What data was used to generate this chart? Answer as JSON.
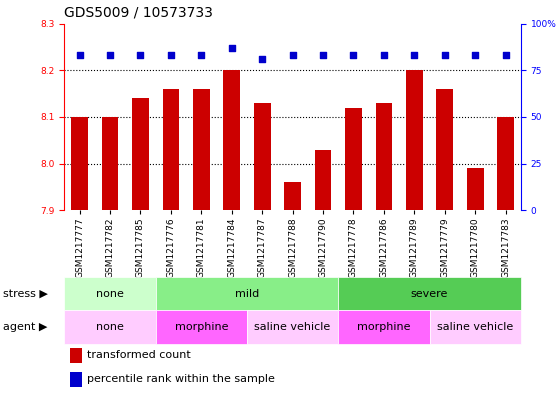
{
  "title": "GDS5009 / 10573733",
  "samples": [
    "GSM1217777",
    "GSM1217782",
    "GSM1217785",
    "GSM1217776",
    "GSM1217781",
    "GSM1217784",
    "GSM1217787",
    "GSM1217788",
    "GSM1217790",
    "GSM1217778",
    "GSM1217786",
    "GSM1217789",
    "GSM1217779",
    "GSM1217780",
    "GSM1217783"
  ],
  "bar_values": [
    8.1,
    8.1,
    8.14,
    8.16,
    8.16,
    8.2,
    8.13,
    7.96,
    8.03,
    8.12,
    8.13,
    8.2,
    8.16,
    7.99,
    8.1
  ],
  "dot_values": [
    83,
    83,
    83,
    83,
    83,
    87,
    81,
    83,
    83,
    83,
    83,
    83,
    83,
    83,
    83
  ],
  "ylim_left": [
    7.9,
    8.3
  ],
  "ylim_right": [
    0,
    100
  ],
  "yticks_left": [
    7.9,
    8.0,
    8.1,
    8.2,
    8.3
  ],
  "yticks_right": [
    0,
    25,
    50,
    75,
    100
  ],
  "bar_color": "#cc0000",
  "dot_color": "#0000cc",
  "stress_groups": [
    {
      "label": "none",
      "start": 0,
      "end": 3,
      "color": "#ccffcc"
    },
    {
      "label": "mild",
      "start": 3,
      "end": 9,
      "color": "#88ee88"
    },
    {
      "label": "severe",
      "start": 9,
      "end": 15,
      "color": "#55cc55"
    }
  ],
  "agent_groups": [
    {
      "label": "none",
      "start": 0,
      "end": 3,
      "color": "#ffccff"
    },
    {
      "label": "morphine",
      "start": 3,
      "end": 6,
      "color": "#ff66ff"
    },
    {
      "label": "saline vehicle",
      "start": 6,
      "end": 9,
      "color": "#ffccff"
    },
    {
      "label": "morphine",
      "start": 9,
      "end": 12,
      "color": "#ff66ff"
    },
    {
      "label": "saline vehicle",
      "start": 12,
      "end": 15,
      "color": "#ffccff"
    }
  ],
  "stress_label": "stress",
  "agent_label": "agent",
  "legend_bar_label": "transformed count",
  "legend_dot_label": "percentile rank within the sample",
  "title_fontsize": 10,
  "tick_fontsize": 6.5,
  "label_fontsize": 8,
  "row_label_fontsize": 8,
  "group_label_fontsize": 8
}
